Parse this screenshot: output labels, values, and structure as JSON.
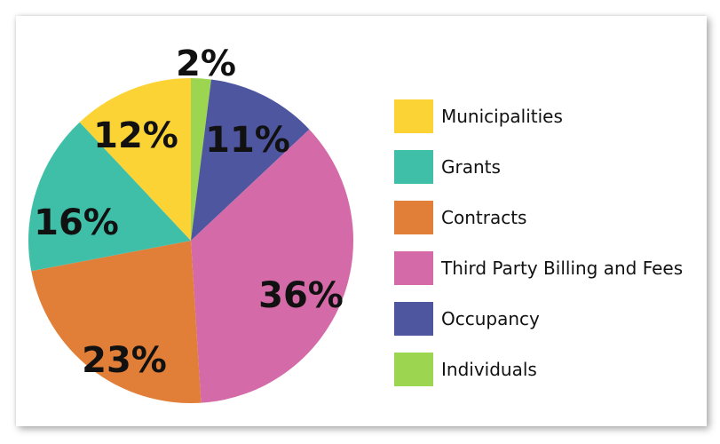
{
  "chart_data": {
    "type": "pie",
    "categories": [
      "Individuals",
      "Occupancy",
      "Third Party Billing and Fees",
      "Contracts",
      "Grants",
      "Municipalities"
    ],
    "values": [
      2,
      11,
      36,
      23,
      16,
      12
    ],
    "value_labels": [
      "2%",
      "11%",
      "36%",
      "23%",
      "16%",
      "12%"
    ],
    "colors": [
      "#9cd650",
      "#4f56a0",
      "#d46aa7",
      "#e17f38",
      "#3fbfa8",
      "#fcd335"
    ],
    "start": "12 o'clock",
    "direction": "clockwise",
    "legend": {
      "placement": "right",
      "items": [
        {
          "label": "Municipalities",
          "color": "#fcd335"
        },
        {
          "label": "Grants",
          "color": "#3fbfa8"
        },
        {
          "label": "Contracts",
          "color": "#e17f38"
        },
        {
          "label": "Third Party Billing and Fees",
          "color": "#d46aa7"
        },
        {
          "label": "Occupancy",
          "color": "#4f56a0"
        },
        {
          "label": "Individuals",
          "color": "#9cd650"
        }
      ]
    }
  }
}
